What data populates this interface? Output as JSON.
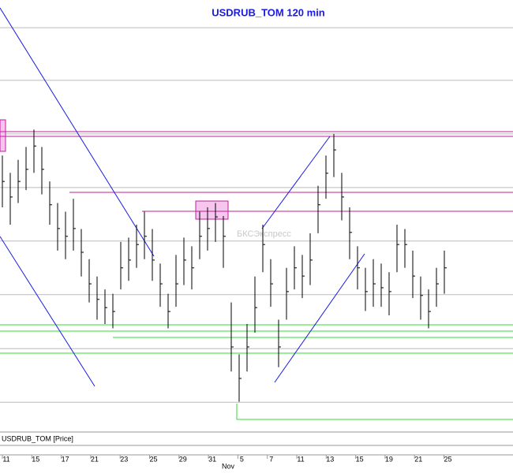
{
  "chart_data": {
    "type": "hlc",
    "title": "USDRUB_TOM 120 min",
    "legend_label": "USDRUB_TOM [Price]",
    "watermark": "БКСЭкспресс",
    "x_labels": [
      "11",
      "15",
      "17",
      "21",
      "23",
      "25",
      "29",
      "31",
      "5",
      "7",
      "11",
      "13",
      "15",
      "19",
      "21",
      "25"
    ],
    "month_label": "Nov",
    "color": "#000000",
    "ylim": [
      0,
      100
    ],
    "grid_levels": [
      93.6,
      81.4,
      69,
      56.6,
      44.2,
      31.8,
      19.3,
      6.9
    ],
    "series": [
      {
        "name": "high",
        "values": [
          64,
          60,
          63,
          66,
          70,
          66,
          58,
          53,
          51,
          54,
          47,
          40,
          36,
          33,
          32,
          44,
          45,
          48,
          51,
          47,
          39,
          32,
          41,
          45,
          43,
          51,
          52,
          53,
          50,
          30,
          18,
          25,
          36,
          48,
          40,
          26,
          38,
          43,
          41,
          46,
          57,
          64,
          69,
          60,
          52,
          43,
          38,
          40,
          39,
          37,
          48,
          47,
          42,
          36,
          33,
          38,
          42
        ]
      },
      {
        "name": "low",
        "values": [
          52,
          48,
          53,
          56,
          60,
          55,
          48,
          42,
          40,
          42,
          36,
          30,
          26,
          25,
          24,
          33,
          35,
          38,
          40,
          35,
          29,
          24,
          29,
          34,
          33,
          40,
          42,
          44,
          38,
          14,
          7,
          14,
          23,
          37,
          29,
          15,
          26,
          33,
          31,
          34,
          46,
          54,
          59,
          49,
          40,
          33,
          28,
          29,
          29,
          27,
          37,
          38,
          31,
          26,
          24,
          29,
          32
        ]
      },
      {
        "name": "close",
        "values": [
          58,
          54.4,
          58,
          60.8,
          66.2,
          60.8,
          52.6,
          47.1,
          45.3,
          47.1,
          41.6,
          34.3,
          30.7,
          28.8,
          27.9,
          38,
          39.8,
          43.4,
          45.3,
          39.8,
          34.3,
          27.9,
          34.3,
          39.8,
          38,
          45.3,
          47.1,
          49.8,
          45.3,
          19.7,
          12.4,
          19.7,
          28.8,
          43.4,
          34.3,
          19.7,
          32.5,
          38,
          36.1,
          39.8,
          52.6,
          59.9,
          65.3,
          54.4,
          46.2,
          38,
          32.5,
          34.3,
          33.4,
          32.5,
          43.4,
          43.4,
          36.1,
          31.6,
          27.9,
          34.3,
          38
        ]
      }
    ]
  }
}
